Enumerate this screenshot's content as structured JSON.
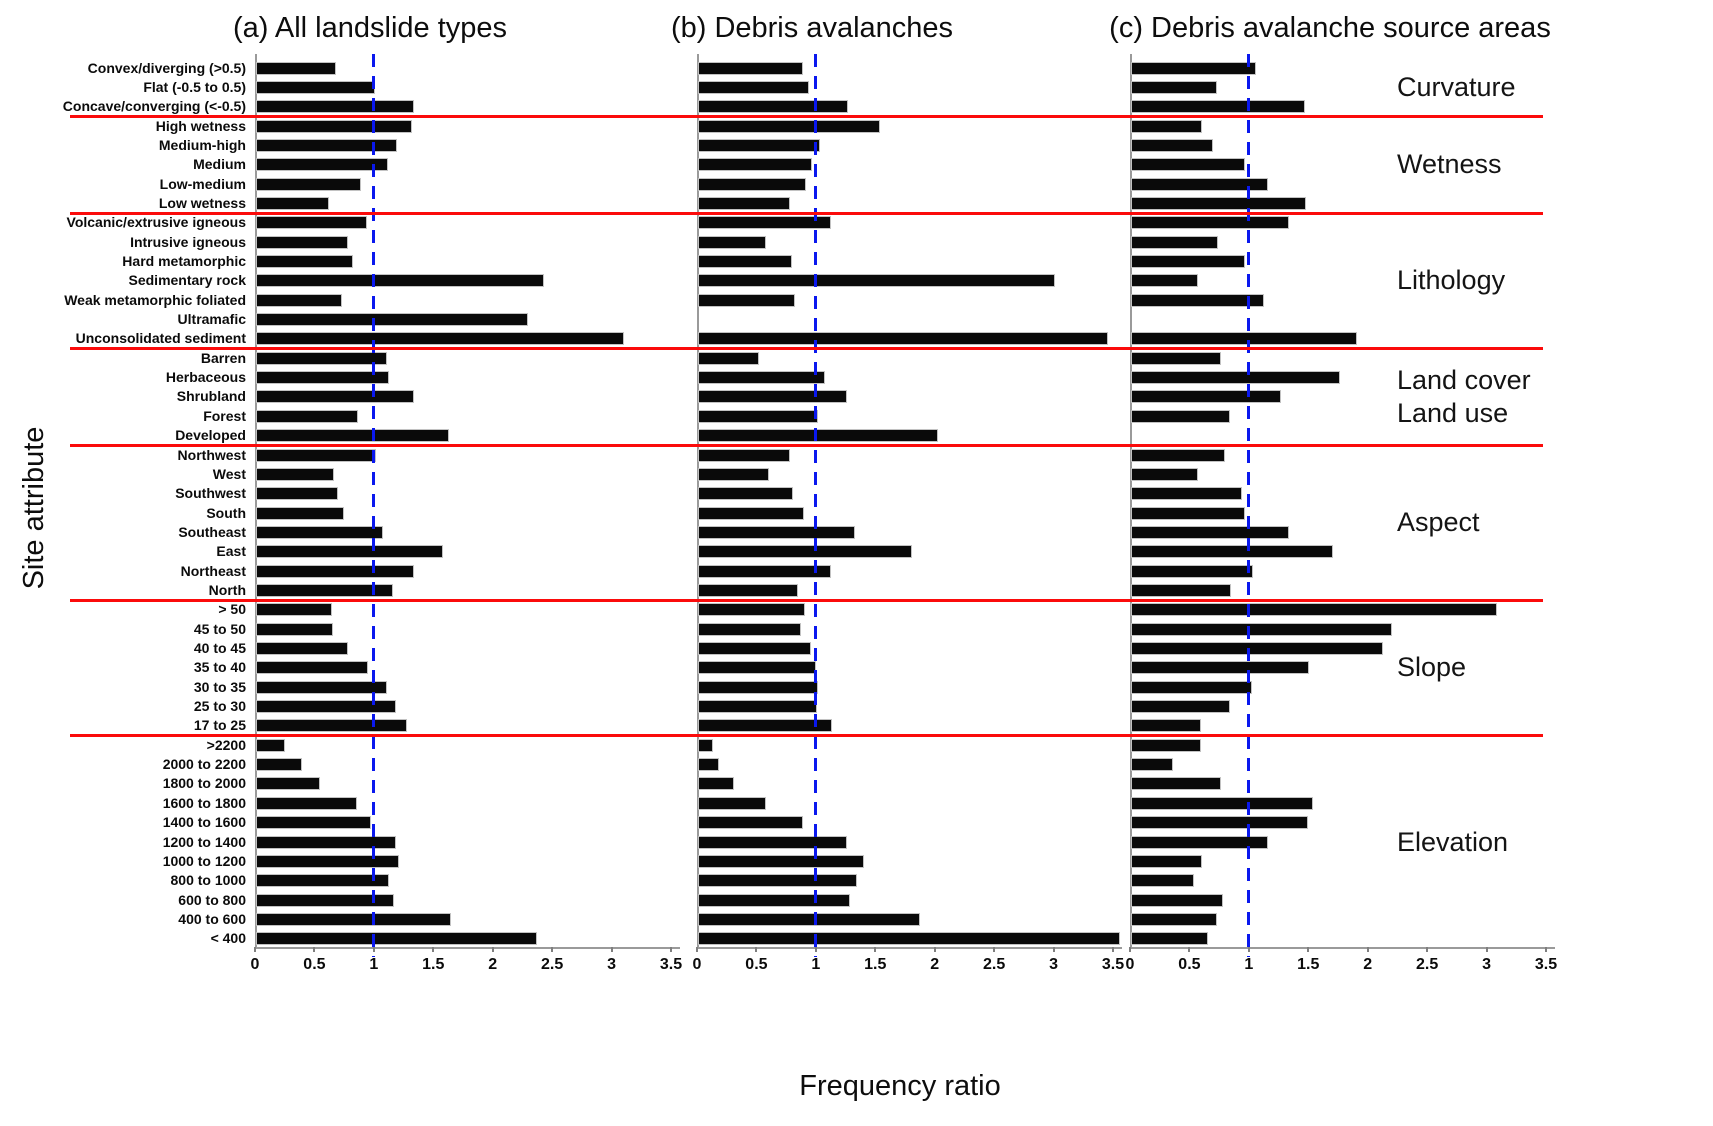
{
  "figure": {
    "xlabel": "Frequency ratio",
    "ylabel": "Site attribute",
    "x_tick_labels": [
      "0",
      "0.5",
      "1",
      "1.5",
      "2",
      "2.5",
      "3",
      "3.5"
    ],
    "colors": {
      "bar": "#0a0a0a",
      "reference_line_blue": "#0a18ee",
      "separator_line_red": "#fb0b0b",
      "axis_gray": "#9a9a9a"
    }
  },
  "chart_data": {
    "type": "bar",
    "orientation": "horizontal",
    "title": "",
    "xlabel": "Frequency ratio",
    "ylabel": "Site attribute",
    "xlim": [
      0,
      3.5
    ],
    "x_ticks": [
      0,
      0.5,
      1,
      1.5,
      2,
      2.5,
      3,
      3.5
    ],
    "reference_line_x": 1,
    "grid": false,
    "categories": [
      "Convex/diverging (>0.5)",
      "Flat (-0.5 to 0.5)",
      "Concave/converging (<-0.5)",
      "High wetness",
      "Medium-high",
      "Medium",
      "Low-medium",
      "Low wetness",
      "Volcanic/extrusive igneous",
      "Intrusive igneous",
      "Hard metamorphic",
      "Sedimentary rock",
      "Weak metamorphic foliated",
      "Ultramafic",
      "Unconsolidated sediment",
      "Barren",
      "Herbaceous",
      "Shrubland",
      "Forest",
      "Developed",
      "Northwest",
      "West",
      "Southwest",
      "South",
      "Southeast",
      "East",
      "Northeast",
      "North",
      "> 50",
      "45 to 50",
      "40 to 45",
      "35 to 40",
      "30 to 35",
      "25 to 30",
      "17 to 25",
      ">2200",
      "2000 to 2200",
      "1800 to 2000",
      "1600 to 1800",
      "1400 to 1600",
      "1200 to 1400",
      "1000 to 1200",
      "800 to 1000",
      "600 to 800",
      "400 to 600",
      "< 400"
    ],
    "series": [
      {
        "name": "(a) All landslide types",
        "values": [
          0.67,
          1.0,
          1.33,
          1.31,
          1.19,
          1.11,
          0.88,
          0.61,
          0.93,
          0.77,
          0.82,
          2.42,
          0.72,
          2.29,
          3.1,
          1.1,
          1.12,
          1.33,
          0.86,
          1.62,
          1.01,
          0.66,
          0.69,
          0.74,
          1.07,
          1.57,
          1.33,
          1.15,
          0.64,
          0.65,
          0.77,
          0.94,
          1.1,
          1.18,
          1.27,
          0.24,
          0.39,
          0.54,
          0.85,
          0.97,
          1.18,
          1.2,
          1.12,
          1.16,
          1.64,
          2.36
        ]
      },
      {
        "name": "(b) Debris avalanches",
        "values": [
          0.88,
          0.93,
          1.26,
          1.53,
          1.03,
          0.96,
          0.91,
          0.77,
          1.12,
          0.57,
          0.79,
          3.0,
          0.82,
          0,
          3.45,
          0.51,
          1.07,
          1.25,
          1.01,
          2.02,
          0.77,
          0.6,
          0.8,
          0.89,
          1.32,
          1.8,
          1.12,
          0.84,
          0.9,
          0.87,
          0.95,
          0.99,
          1.01,
          1.0,
          1.13,
          0.13,
          0.18,
          0.3,
          0.57,
          0.88,
          1.25,
          1.4,
          1.34,
          1.28,
          1.87,
          3.55
        ]
      },
      {
        "name": "(c) Debris avalanche source areas",
        "values": [
          1.05,
          0.72,
          1.46,
          0.6,
          0.69,
          0.96,
          1.15,
          1.47,
          1.33,
          0.73,
          0.96,
          0.56,
          1.12,
          0,
          1.9,
          0.76,
          1.76,
          1.26,
          0.83,
          0,
          0.79,
          0.56,
          0.93,
          0.96,
          1.33,
          1.7,
          1.03,
          0.84,
          3.08,
          2.2,
          2.12,
          1.5,
          1.02,
          0.83,
          0.59,
          0.59,
          0.35,
          0.76,
          1.53,
          1.49,
          1.15,
          0.6,
          0.53,
          0.77,
          0.72,
          0.65
        ]
      }
    ],
    "groups": [
      {
        "label_lines": [
          "Curvature"
        ],
        "start": 0,
        "end": 2
      },
      {
        "label_lines": [
          "Wetness"
        ],
        "start": 3,
        "end": 7
      },
      {
        "label_lines": [
          "Lithology"
        ],
        "start": 8,
        "end": 14
      },
      {
        "label_lines": [
          "Land cover",
          "Land use"
        ],
        "start": 15,
        "end": 19
      },
      {
        "label_lines": [
          "Aspect"
        ],
        "start": 20,
        "end": 27
      },
      {
        "label_lines": [
          "Slope"
        ],
        "start": 28,
        "end": 34
      },
      {
        "label_lines": [
          "Elevation"
        ],
        "start": 35,
        "end": 45
      }
    ],
    "separators_after": [
      2,
      7,
      14,
      19,
      27,
      34
    ],
    "legend": "none"
  }
}
